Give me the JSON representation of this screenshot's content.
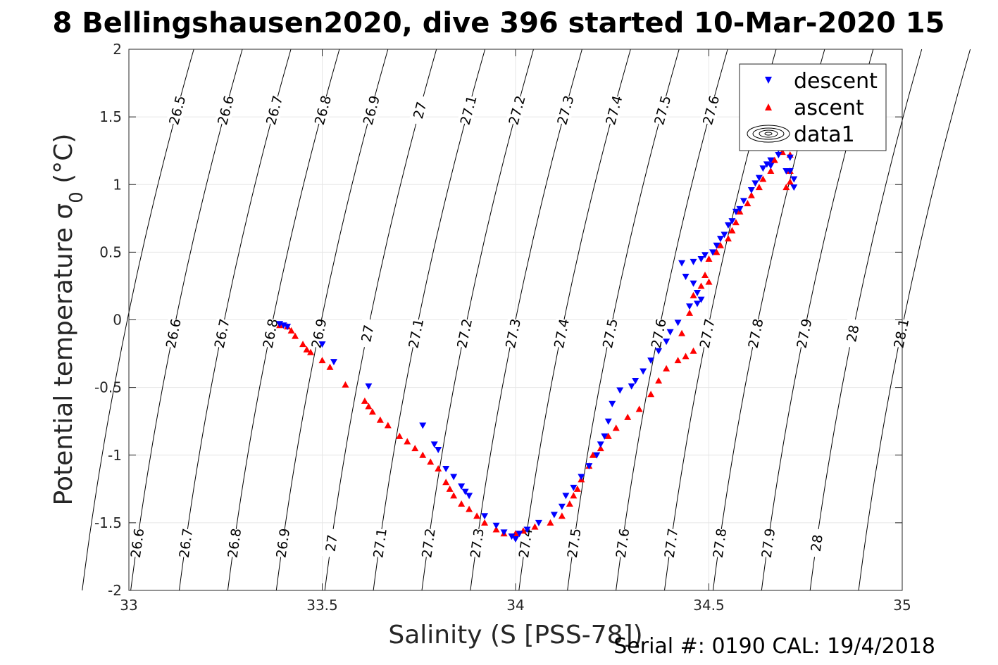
{
  "chart_data": {
    "type": "scatter",
    "title": "8 Bellingshausen2020, dive 396 started 10-Mar-2020 15",
    "xlabel": "Salinity (S [PSS-78])",
    "ylabel": "Potential temperature σ",
    "ylabel_sub": "0",
    "ylabel_unit": " (°C)",
    "footer": "Serial #: 0190  CAL: 19/4/2018",
    "xlim": [
      33,
      35
    ],
    "ylim": [
      -2,
      2
    ],
    "x_ticks": [
      "33",
      "33.5",
      "34",
      "34.5",
      "35"
    ],
    "y_ticks": [
      "2",
      "1.5",
      "1",
      "0.5",
      "0",
      "-0.5",
      "-1",
      "-1.5",
      "-2"
    ],
    "grid": true,
    "legend": {
      "position": "top-right",
      "entries": [
        "descent",
        "ascent",
        "data1"
      ]
    },
    "colors": {
      "descent": "#0000ff",
      "ascent": "#ff0000",
      "isopycnal": "#000000"
    },
    "isopycnals": {
      "levels": [
        26.5,
        26.6,
        26.7,
        26.8,
        26.9,
        27.0,
        27.1,
        27.2,
        27.3,
        27.4,
        27.5,
        27.6,
        27.7,
        27.8,
        27.9,
        28.0,
        28.1
      ],
      "label_rows": [
        {
          "label_y": 1.55,
          "labels": [
            "26.5",
            "26.6",
            "26.7",
            "26.8",
            "26.9",
            "27",
            "27.1",
            "27.2",
            "27.3",
            "27.4",
            "27.5",
            "27.6",
            "28"
          ]
        },
        {
          "label_y": -0.1,
          "labels": [
            "26.5",
            "26.6",
            "26.7",
            "26.8",
            "26.9",
            "27",
            "27.1",
            "27.2",
            "27.3",
            "27.4",
            "27.5",
            "27.6",
            "27.7",
            "27.8",
            "27.9",
            "28",
            "28.1"
          ]
        },
        {
          "label_y": -1.65,
          "labels": [
            "26.6",
            "26.7",
            "26.8",
            "26.9",
            "27",
            "27.1",
            "27.2",
            "27.3",
            "27.4",
            "27.5",
            "27.6",
            "27.7",
            "27.8",
            "27.9",
            "28"
          ]
        }
      ]
    },
    "series": [
      {
        "name": "descent",
        "marker": "triangle-down",
        "points": [
          [
            33.39,
            -0.03
          ],
          [
            33.4,
            -0.04
          ],
          [
            33.41,
            -0.05
          ],
          [
            33.5,
            -0.18
          ],
          [
            33.53,
            -0.31
          ],
          [
            33.62,
            -0.49
          ],
          [
            33.76,
            -0.78
          ],
          [
            33.79,
            -0.92
          ],
          [
            33.8,
            -0.96
          ],
          [
            33.82,
            -1.1
          ],
          [
            33.84,
            -1.16
          ],
          [
            33.86,
            -1.23
          ],
          [
            33.87,
            -1.27
          ],
          [
            33.88,
            -1.3
          ],
          [
            33.92,
            -1.45
          ],
          [
            33.95,
            -1.52
          ],
          [
            33.97,
            -1.57
          ],
          [
            33.99,
            -1.6
          ],
          [
            34.0,
            -1.62
          ],
          [
            34.01,
            -1.58
          ],
          [
            34.03,
            -1.55
          ],
          [
            34.06,
            -1.5
          ],
          [
            34.1,
            -1.44
          ],
          [
            34.12,
            -1.38
          ],
          [
            34.13,
            -1.3
          ],
          [
            34.15,
            -1.24
          ],
          [
            34.17,
            -1.16
          ],
          [
            34.19,
            -1.08
          ],
          [
            34.21,
            -1.0
          ],
          [
            34.22,
            -0.92
          ],
          [
            34.23,
            -0.86
          ],
          [
            34.24,
            -0.75
          ],
          [
            34.25,
            -0.62
          ],
          [
            34.27,
            -0.52
          ],
          [
            34.3,
            -0.49
          ],
          [
            34.31,
            -0.45
          ],
          [
            34.33,
            -0.38
          ],
          [
            34.35,
            -0.3
          ],
          [
            34.37,
            -0.23
          ],
          [
            34.39,
            -0.16
          ],
          [
            34.4,
            -0.09
          ],
          [
            34.42,
            -0.02
          ],
          [
            34.45,
            0.1
          ],
          [
            34.47,
            0.12
          ],
          [
            34.48,
            0.15
          ],
          [
            34.47,
            0.2
          ],
          [
            34.46,
            0.27
          ],
          [
            34.44,
            0.32
          ],
          [
            34.43,
            0.42
          ],
          [
            34.46,
            0.43
          ],
          [
            34.48,
            0.45
          ],
          [
            34.49,
            0.48
          ],
          [
            34.51,
            0.5
          ],
          [
            34.52,
            0.55
          ],
          [
            34.53,
            0.6
          ],
          [
            34.54,
            0.63
          ],
          [
            34.55,
            0.7
          ],
          [
            34.56,
            0.73
          ],
          [
            34.57,
            0.8
          ],
          [
            34.58,
            0.82
          ],
          [
            34.59,
            0.88
          ],
          [
            34.61,
            0.96
          ],
          [
            34.62,
            1.01
          ],
          [
            34.63,
            1.05
          ],
          [
            34.64,
            1.12
          ],
          [
            34.65,
            1.15
          ],
          [
            34.66,
            1.18
          ],
          [
            34.68,
            1.22
          ],
          [
            34.69,
            1.27
          ],
          [
            34.7,
            1.3
          ],
          [
            34.71,
            1.2
          ],
          [
            34.71,
            1.1
          ],
          [
            34.72,
            1.04
          ],
          [
            34.72,
            0.98
          ],
          [
            34.7,
            1.1
          ],
          [
            34.66,
            1.14
          ],
          [
            34.68,
            1.26
          ]
        ]
      },
      {
        "name": "ascent",
        "marker": "triangle-up",
        "points": [
          [
            33.39,
            -0.04
          ],
          [
            33.41,
            -0.05
          ],
          [
            33.42,
            -0.08
          ],
          [
            33.43,
            -0.12
          ],
          [
            33.45,
            -0.18
          ],
          [
            33.46,
            -0.22
          ],
          [
            33.47,
            -0.24
          ],
          [
            33.5,
            -0.3
          ],
          [
            33.52,
            -0.35
          ],
          [
            33.56,
            -0.48
          ],
          [
            33.61,
            -0.6
          ],
          [
            33.62,
            -0.64
          ],
          [
            33.63,
            -0.68
          ],
          [
            33.65,
            -0.74
          ],
          [
            33.67,
            -0.78
          ],
          [
            33.7,
            -0.86
          ],
          [
            33.72,
            -0.9
          ],
          [
            33.74,
            -0.95
          ],
          [
            33.76,
            -1.0
          ],
          [
            33.78,
            -1.05
          ],
          [
            33.8,
            -1.1
          ],
          [
            33.82,
            -1.2
          ],
          [
            33.83,
            -1.25
          ],
          [
            33.84,
            -1.3
          ],
          [
            33.86,
            -1.36
          ],
          [
            33.88,
            -1.4
          ],
          [
            33.9,
            -1.45
          ],
          [
            33.92,
            -1.5
          ],
          [
            33.95,
            -1.55
          ],
          [
            33.97,
            -1.58
          ],
          [
            34.0,
            -1.58
          ],
          [
            34.02,
            -1.56
          ],
          [
            34.05,
            -1.53
          ],
          [
            34.09,
            -1.5
          ],
          [
            34.12,
            -1.45
          ],
          [
            34.14,
            -1.36
          ],
          [
            34.15,
            -1.3
          ],
          [
            34.16,
            -1.25
          ],
          [
            34.17,
            -1.18
          ],
          [
            34.19,
            -1.08
          ],
          [
            34.2,
            -1.0
          ],
          [
            34.22,
            -0.95
          ],
          [
            34.24,
            -0.86
          ],
          [
            34.26,
            -0.8
          ],
          [
            34.29,
            -0.72
          ],
          [
            34.32,
            -0.66
          ],
          [
            34.35,
            -0.55
          ],
          [
            34.37,
            -0.45
          ],
          [
            34.39,
            -0.36
          ],
          [
            34.42,
            -0.3
          ],
          [
            34.44,
            -0.27
          ],
          [
            34.46,
            -0.23
          ],
          [
            34.43,
            -0.1
          ],
          [
            34.45,
            0.05
          ],
          [
            34.46,
            0.18
          ],
          [
            34.48,
            0.25
          ],
          [
            34.5,
            0.28
          ],
          [
            34.49,
            0.33
          ],
          [
            34.5,
            0.45
          ],
          [
            34.52,
            0.5
          ],
          [
            34.53,
            0.55
          ],
          [
            34.55,
            0.6
          ],
          [
            34.56,
            0.66
          ],
          [
            34.57,
            0.72
          ],
          [
            34.58,
            0.8
          ],
          [
            34.6,
            0.86
          ],
          [
            34.61,
            0.92
          ],
          [
            34.63,
            0.98
          ],
          [
            34.64,
            1.04
          ],
          [
            34.66,
            1.1
          ],
          [
            34.67,
            1.18
          ],
          [
            34.69,
            1.24
          ],
          [
            34.7,
            1.28
          ],
          [
            34.71,
            1.22
          ],
          [
            34.71,
            1.1
          ],
          [
            34.71,
            1.02
          ],
          [
            34.7,
            0.98
          ]
        ]
      }
    ]
  }
}
